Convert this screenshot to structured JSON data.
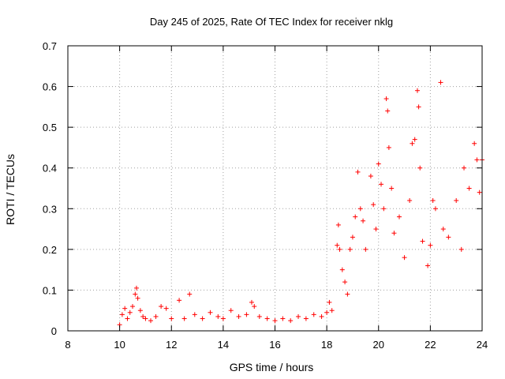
{
  "chart_data": {
    "type": "scatter",
    "title": "Day 245 of 2025, Rate Of TEC Index for receiver nklg",
    "xlabel": "GPS time / hours",
    "ylabel": "ROTI / TECUs",
    "xlim": [
      8,
      24
    ],
    "ylim": [
      0,
      0.7
    ],
    "xticks": [
      "8",
      "10",
      "12",
      "14",
      "16",
      "18",
      "20",
      "22",
      "24"
    ],
    "yticks": [
      "0",
      "0.1",
      "0.2",
      "0.3",
      "0.4",
      "0.5",
      "0.6",
      "0.7"
    ],
    "grid": true,
    "marker": "+",
    "series": [
      {
        "name": "ROTI",
        "color": "#ff0000",
        "points": [
          [
            10.0,
            0.015
          ],
          [
            10.1,
            0.04
          ],
          [
            10.2,
            0.055
          ],
          [
            10.3,
            0.03
          ],
          [
            10.4,
            0.045
          ],
          [
            10.5,
            0.06
          ],
          [
            10.6,
            0.09
          ],
          [
            10.65,
            0.105
          ],
          [
            10.7,
            0.08
          ],
          [
            10.8,
            0.05
          ],
          [
            10.9,
            0.035
          ],
          [
            11.0,
            0.03
          ],
          [
            11.2,
            0.025
          ],
          [
            11.4,
            0.035
          ],
          [
            11.6,
            0.06
          ],
          [
            11.8,
            0.055
          ],
          [
            12.0,
            0.03
          ],
          [
            12.3,
            0.075
          ],
          [
            12.5,
            0.03
          ],
          [
            12.7,
            0.09
          ],
          [
            12.9,
            0.04
          ],
          [
            13.2,
            0.03
          ],
          [
            13.5,
            0.045
          ],
          [
            13.8,
            0.035
          ],
          [
            14.0,
            0.03
          ],
          [
            14.3,
            0.05
          ],
          [
            14.6,
            0.035
          ],
          [
            14.9,
            0.04
          ],
          [
            15.1,
            0.07
          ],
          [
            15.2,
            0.06
          ],
          [
            15.4,
            0.035
          ],
          [
            15.7,
            0.03
          ],
          [
            16.0,
            0.025
          ],
          [
            16.3,
            0.03
          ],
          [
            16.6,
            0.025
          ],
          [
            16.9,
            0.035
          ],
          [
            17.2,
            0.03
          ],
          [
            17.5,
            0.04
          ],
          [
            17.8,
            0.035
          ],
          [
            18.0,
            0.045
          ],
          [
            18.1,
            0.07
          ],
          [
            18.2,
            0.05
          ],
          [
            18.4,
            0.21
          ],
          [
            18.45,
            0.26
          ],
          [
            18.5,
            0.2
          ],
          [
            18.6,
            0.15
          ],
          [
            18.7,
            0.12
          ],
          [
            18.8,
            0.09
          ],
          [
            18.9,
            0.2
          ],
          [
            19.0,
            0.23
          ],
          [
            19.1,
            0.28
          ],
          [
            19.2,
            0.39
          ],
          [
            19.3,
            0.3
          ],
          [
            19.4,
            0.27
          ],
          [
            19.5,
            0.2
          ],
          [
            19.7,
            0.38
          ],
          [
            19.8,
            0.31
          ],
          [
            19.9,
            0.25
          ],
          [
            20.0,
            0.41
          ],
          [
            20.1,
            0.36
          ],
          [
            20.2,
            0.3
          ],
          [
            20.3,
            0.57
          ],
          [
            20.35,
            0.54
          ],
          [
            20.4,
            0.45
          ],
          [
            20.5,
            0.35
          ],
          [
            20.6,
            0.24
          ],
          [
            20.8,
            0.28
          ],
          [
            21.0,
            0.18
          ],
          [
            21.2,
            0.32
          ],
          [
            21.3,
            0.46
          ],
          [
            21.4,
            0.47
          ],
          [
            21.5,
            0.59
          ],
          [
            21.55,
            0.55
          ],
          [
            21.6,
            0.4
          ],
          [
            21.7,
            0.22
          ],
          [
            21.9,
            0.16
          ],
          [
            22.0,
            0.21
          ],
          [
            22.1,
            0.32
          ],
          [
            22.2,
            0.3
          ],
          [
            22.4,
            0.61
          ],
          [
            22.5,
            0.25
          ],
          [
            22.7,
            0.23
          ],
          [
            23.0,
            0.32
          ],
          [
            23.2,
            0.2
          ],
          [
            23.3,
            0.4
          ],
          [
            23.5,
            0.35
          ],
          [
            23.7,
            0.46
          ],
          [
            23.8,
            0.42
          ],
          [
            23.9,
            0.34
          ],
          [
            24.0,
            0.42
          ]
        ]
      }
    ]
  }
}
